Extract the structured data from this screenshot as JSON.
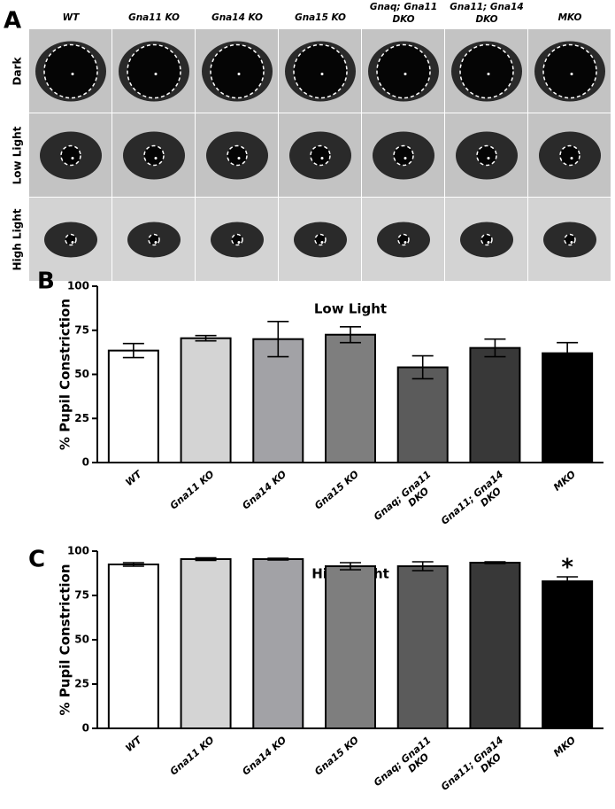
{
  "panel_a": {
    "label": "A",
    "columns": [
      [
        "WT"
      ],
      [
        "Gna11 KO"
      ],
      [
        "Gna14 KO"
      ],
      [
        "Gna15 KO"
      ],
      [
        "Gnaq; Gna11",
        "DKO"
      ],
      [
        "Gna11; Gna14",
        "DKO"
      ],
      [
        "MKO"
      ]
    ],
    "rows": [
      "Dark",
      "Low Light",
      "High Light"
    ]
  },
  "chart_data": [
    {
      "type": "bar",
      "panel_label": "B",
      "title": "Low Light",
      "y_label": "% Pupil Constriction",
      "categories": [
        [
          "WT"
        ],
        [
          "Gna11 KO"
        ],
        [
          "Gna14 KO"
        ],
        [
          "Gna15 KO"
        ],
        [
          "Gnaq; Gna11",
          "DKO"
        ],
        [
          "Gna11; Gna14",
          "DKO"
        ],
        [
          "MKO"
        ]
      ],
      "values": [
        63.5,
        70.5,
        70,
        72.5,
        54,
        65,
        62
      ],
      "errors": [
        4,
        1.5,
        10,
        4.5,
        6.5,
        5,
        6
      ],
      "colors": [
        "#ffffff",
        "#d4d4d4",
        "#a2a2a6",
        "#7e7e7e",
        "#5b5b5b",
        "#383838",
        "#000000"
      ],
      "ylim": [
        0,
        100
      ],
      "yticks": [
        0,
        25,
        50,
        75,
        100
      ]
    },
    {
      "type": "bar",
      "panel_label": "C",
      "title": "High Light",
      "y_label": "% Pupil Constriction",
      "categories": [
        [
          "WT"
        ],
        [
          "Gna11 KO"
        ],
        [
          "Gna14 KO"
        ],
        [
          "Gna15 KO"
        ],
        [
          "Gnaq; Gna11",
          "DKO"
        ],
        [
          "Gna11; Gna14",
          "DKO"
        ],
        [
          "MKO"
        ]
      ],
      "values": [
        92.5,
        95.5,
        95.5,
        91.5,
        91.5,
        93.5,
        83
      ],
      "errors": [
        1,
        0.7,
        0.5,
        2,
        2.5,
        0.5,
        2.5
      ],
      "significance": [
        null,
        null,
        null,
        null,
        null,
        null,
        "*"
      ],
      "colors": [
        "#ffffff",
        "#d4d4d4",
        "#a2a2a6",
        "#7e7e7e",
        "#5b5b5b",
        "#383838",
        "#000000"
      ],
      "ylim": [
        0,
        100
      ],
      "yticks": [
        0,
        25,
        50,
        75,
        100
      ]
    }
  ]
}
